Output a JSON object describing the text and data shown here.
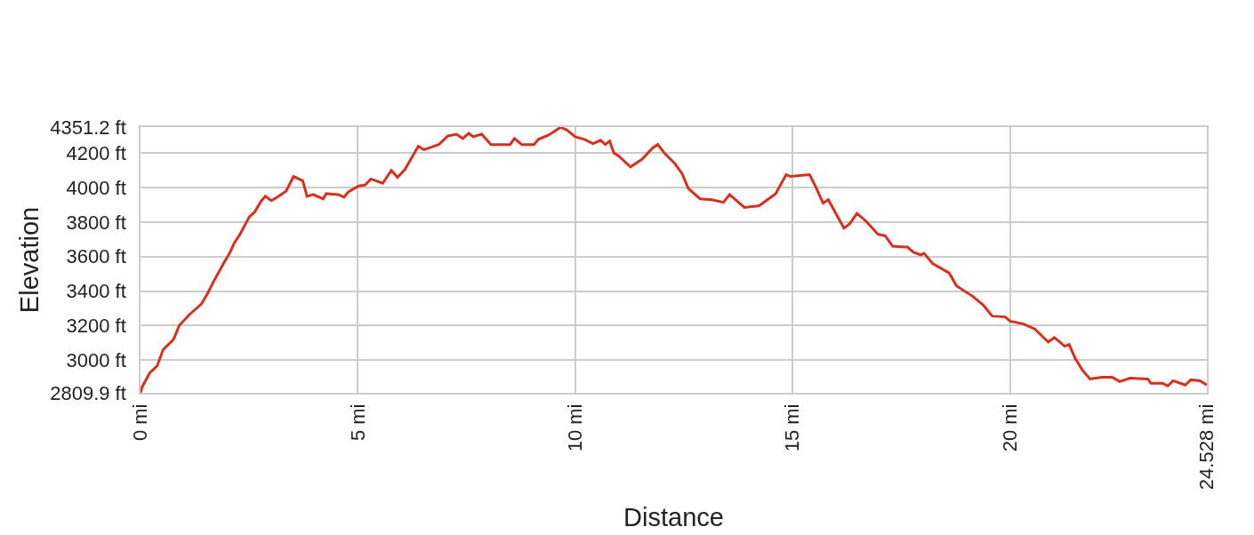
{
  "chart_data": {
    "type": "line",
    "xlabel": "Distance",
    "ylabel": "Elevation",
    "x": [
      0,
      0.04,
      0.21,
      0.38,
      0.52,
      0.76,
      0.89,
      1.13,
      1.4,
      1.54,
      1.68,
      1.92,
      2.05,
      2.16,
      2.29,
      2.5,
      2.63,
      2.77,
      2.87,
      3.01,
      3.15,
      3.35,
      3.52,
      3.73,
      3.83,
      3.97,
      4.2,
      4.27,
      4.55,
      4.68,
      4.78,
      5.02,
      5.16,
      5.3,
      5.57,
      5.77,
      5.91,
      6.08,
      6.39,
      6.52,
      6.86,
      7.07,
      7.27,
      7.41,
      7.55,
      7.65,
      7.85,
      8.06,
      8.5,
      8.6,
      8.77,
      9.05,
      9.15,
      9.39,
      9.66,
      9.8,
      10.0,
      10.21,
      10.41,
      10.58,
      10.69,
      10.79,
      10.89,
      10.99,
      11.27,
      11.54,
      11.78,
      11.9,
      12.05,
      12.29,
      12.46,
      12.6,
      12.87,
      13.14,
      13.41,
      13.55,
      13.89,
      14.23,
      14.61,
      14.85,
      14.95,
      15.39,
      15.53,
      15.7,
      15.82,
      16.18,
      16.31,
      16.48,
      16.69,
      16.96,
      17.13,
      17.3,
      17.64,
      17.78,
      17.95,
      18.02,
      18.22,
      18.6,
      18.77,
      19.14,
      19.38,
      19.59,
      19.89,
      20.0,
      20.3,
      20.57,
      20.88,
      21.02,
      21.26,
      21.36,
      21.5,
      21.67,
      21.84,
      22.11,
      22.35,
      22.52,
      22.76,
      23.17,
      23.24,
      23.51,
      23.63,
      23.75,
      24.03,
      24.16,
      24.37,
      24.528
    ],
    "series": [
      {
        "color": "#d7301f",
        "values": [
          2810,
          2845,
          2925,
          2965,
          3060,
          3120,
          3200,
          3265,
          3325,
          3385,
          3455,
          3565,
          3620,
          3680,
          3730,
          3830,
          3860,
          3920,
          3950,
          3925,
          3945,
          3980,
          4065,
          4040,
          3950,
          3960,
          3935,
          3965,
          3960,
          3945,
          3975,
          4010,
          4015,
          4050,
          4025,
          4100,
          4060,
          4105,
          4240,
          4220,
          4250,
          4300,
          4310,
          4285,
          4315,
          4295,
          4310,
          4250,
          4250,
          4285,
          4250,
          4250,
          4280,
          4305,
          4350,
          4335,
          4295,
          4280,
          4255,
          4275,
          4250,
          4270,
          4200,
          4185,
          4120,
          4165,
          4230,
          4250,
          4200,
          4140,
          4080,
          3995,
          3935,
          3930,
          3915,
          3960,
          3885,
          3895,
          3965,
          4075,
          4065,
          4075,
          4005,
          3910,
          3930,
          3765,
          3790,
          3850,
          3805,
          3730,
          3720,
          3660,
          3655,
          3625,
          3610,
          3620,
          3560,
          3505,
          3430,
          3370,
          3320,
          3255,
          3250,
          3225,
          3210,
          3180,
          3105,
          3130,
          3080,
          3090,
          3010,
          2940,
          2890,
          2900,
          2900,
          2875,
          2895,
          2890,
          2865,
          2865,
          2850,
          2880,
          2855,
          2885,
          2880,
          2855
        ]
      }
    ],
    "xlim": [
      0,
      24.528
    ],
    "ylim": [
      2809.9,
      4351.2
    ],
    "xticks": [
      {
        "value": 0,
        "label": "0 mi"
      },
      {
        "value": 5,
        "label": "5 mi"
      },
      {
        "value": 10,
        "label": "10 mi"
      },
      {
        "value": 15,
        "label": "15 mi"
      },
      {
        "value": 20,
        "label": "20 mi"
      },
      {
        "value": 24.528,
        "label": "24.528 mi"
      }
    ],
    "yticks": [
      {
        "value": 2809.9,
        "label": "2809.9 ft"
      },
      {
        "value": 3000,
        "label": "3000 ft"
      },
      {
        "value": 3200,
        "label": "3200 ft"
      },
      {
        "value": 3400,
        "label": "3400 ft"
      },
      {
        "value": 3600,
        "label": "3600 ft"
      },
      {
        "value": 3800,
        "label": "3800 ft"
      },
      {
        "value": 4000,
        "label": "4000 ft"
      },
      {
        "value": 4200,
        "label": "4200 ft"
      },
      {
        "value": 4351.2,
        "label": "4351.2 ft"
      }
    ],
    "grid": true,
    "line_style": "solid"
  }
}
